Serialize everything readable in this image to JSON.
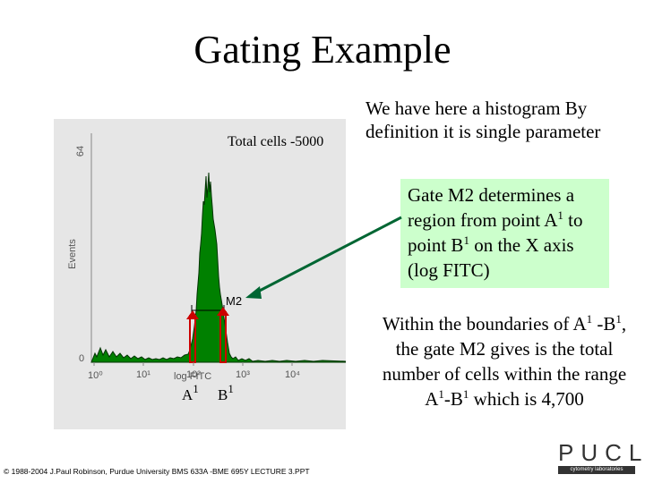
{
  "slide": {
    "title": "Gating Example",
    "footer": "© 1988-2004 J.Paul Robinson, Purdue University  BMS 633A -BME 695Y LECTURE 3.PPT"
  },
  "histogram": {
    "caption": "Total cells -5000",
    "ylabel": "Events",
    "ytick_top": "64",
    "ytick_bottom": "0",
    "xlabel": "log FITC",
    "xticks": [
      "10⁰",
      "10¹",
      "10²",
      "10³",
      "10⁴"
    ],
    "gate_label": "M2",
    "point_a": "A",
    "point_b": "B",
    "point_sup": "1"
  },
  "text": {
    "intro": "We have here a histogram By definition it is single parameter",
    "gate_a": "Gate M2 determines a region from point A",
    "gate_b": " to point B",
    "gate_c": " on the X axis (log FITC)",
    "within_a": "Within the boundaries of A",
    "within_b": " -B",
    "within_c": ", the gate M2 gives is the total number of cells within the range A",
    "within_d": "-B",
    "within_e": " which is 4,700",
    "sup": "1"
  },
  "logo": {
    "letters": "PUCL",
    "subtitle": "cytometry laboratories"
  },
  "colors": {
    "fill": "#008000",
    "gate_marker": "#cc0000",
    "arrow": "#006633",
    "box": "#ccffcc"
  }
}
